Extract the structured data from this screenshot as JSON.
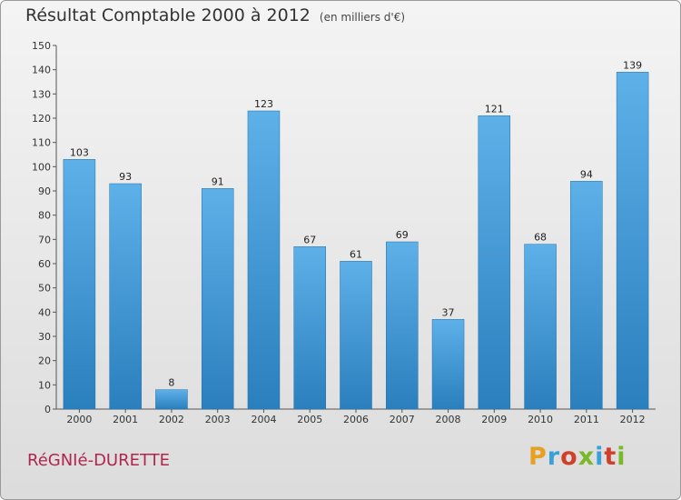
{
  "title": "Résultat Comptable 2000 à 2012",
  "subtitle": "(en milliers d'€)",
  "commune": "RéGNIé-DURETTE",
  "logo": "Proxiti",
  "colors": {
    "bar_top": "#5eb0e8",
    "bar_bottom": "#2a7fbd",
    "commune": "#b0264f"
  },
  "chart_data": {
    "type": "bar",
    "title": "Résultat Comptable 2000 à 2012",
    "subtitle": "(en milliers d'€)",
    "categories": [
      "2000",
      "2001",
      "2002",
      "2003",
      "2004",
      "2005",
      "2006",
      "2007",
      "2008",
      "2009",
      "2010",
      "2011",
      "2012"
    ],
    "values": [
      103,
      93,
      8,
      91,
      123,
      67,
      61,
      69,
      37,
      121,
      68,
      94,
      139
    ],
    "ylim": [
      0,
      150
    ],
    "yticks": [
      0,
      10,
      20,
      30,
      40,
      50,
      60,
      70,
      80,
      90,
      100,
      110,
      120,
      130,
      140,
      150
    ],
    "grid": false,
    "data_labels": true
  }
}
